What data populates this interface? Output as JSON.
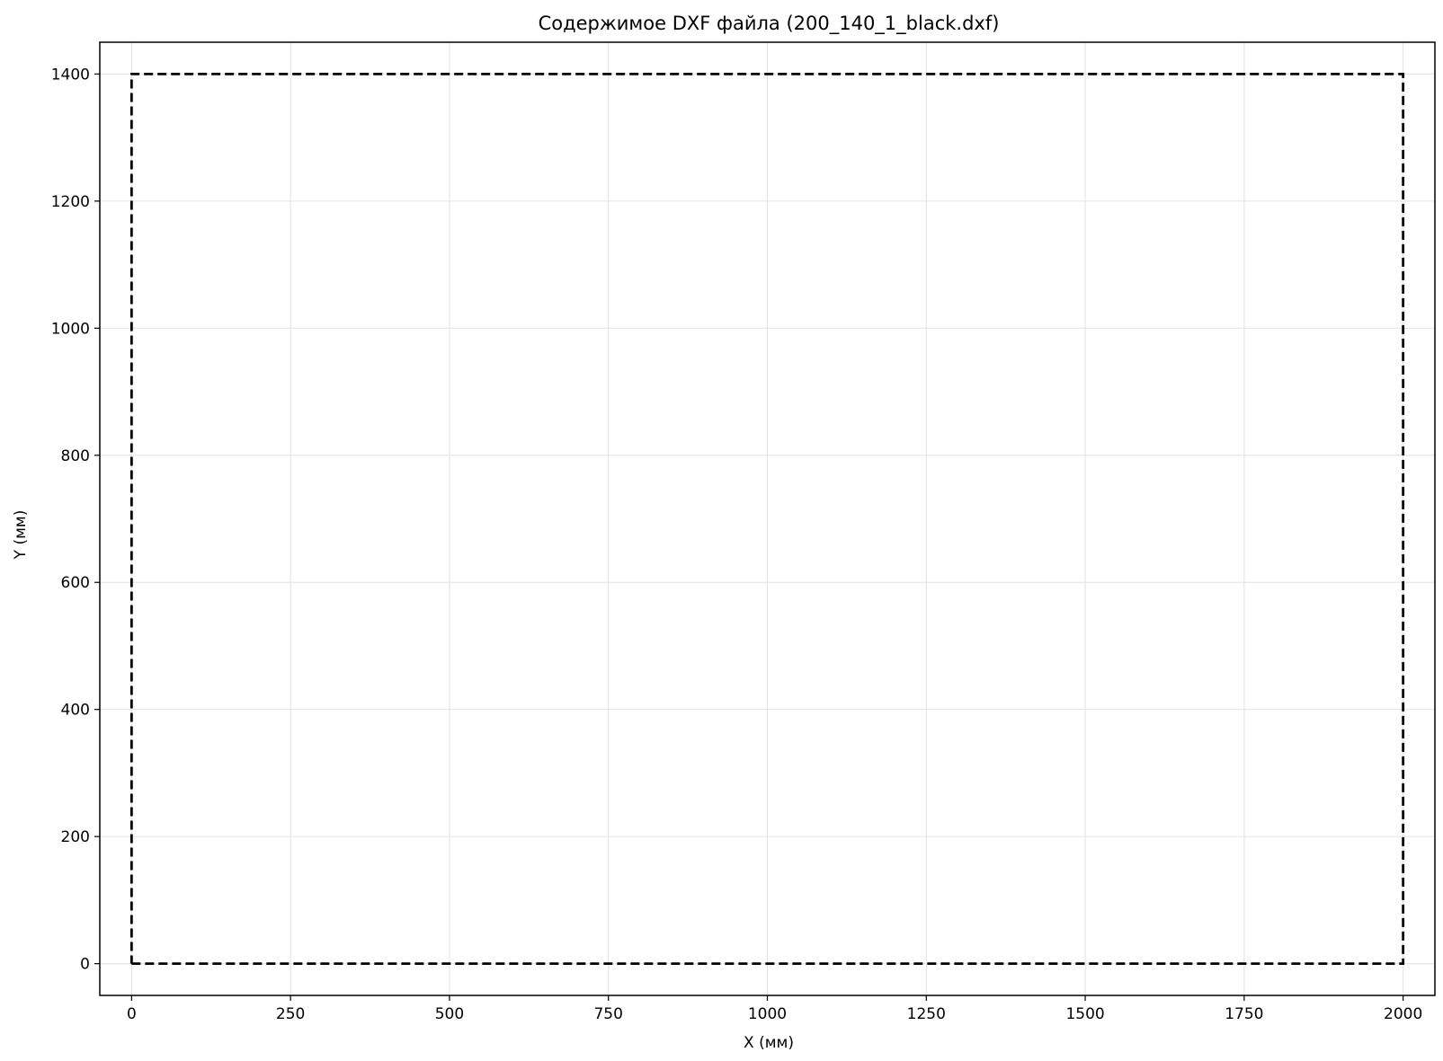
{
  "chart_data": {
    "type": "line",
    "title": "Содержимое DXF файла (200_140_1_black.dxf)",
    "xlabel": "X (мм)",
    "ylabel": "Y (мм)",
    "xlim": [
      -50,
      2050
    ],
    "ylim": [
      -50,
      1450
    ],
    "xticks": [
      0,
      250,
      500,
      750,
      1000,
      1250,
      1500,
      1750,
      2000
    ],
    "yticks": [
      0,
      200,
      400,
      600,
      800,
      1000,
      1200,
      1400
    ],
    "grid": true,
    "series": [
      {
        "line_style": "dashed",
        "color": "#000000",
        "x": [
          0,
          2000,
          2000,
          0,
          0
        ],
        "y": [
          0,
          0,
          1400,
          1400,
          0
        ]
      }
    ]
  },
  "colors": {
    "grid": "#e6e6e6",
    "axes": "#000000",
    "series": "#000000"
  }
}
